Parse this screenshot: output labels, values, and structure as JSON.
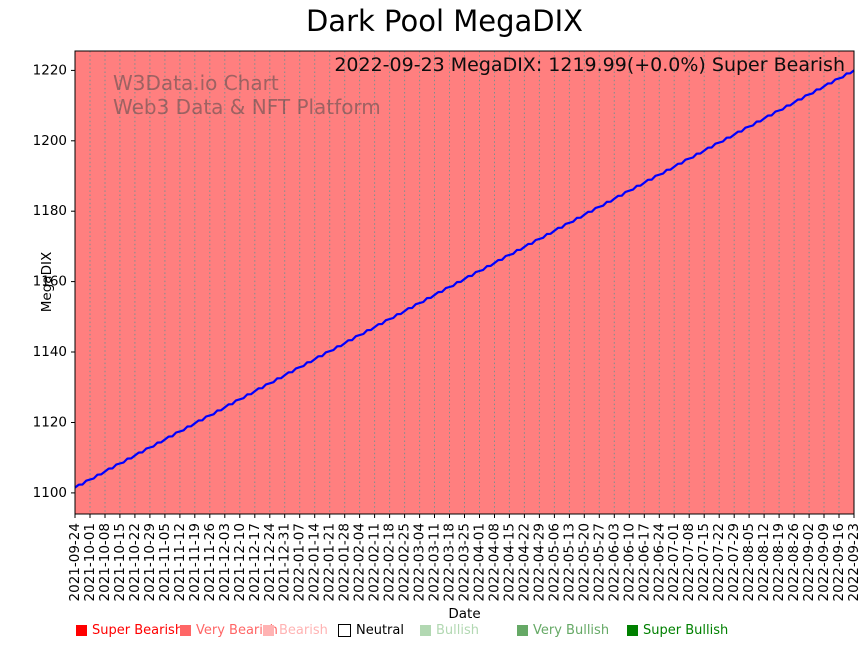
{
  "title": "Dark Pool MegaDIX",
  "annotation": {
    "text": "2022-09-23 MegaDIX: 1219.99(+0.0%) Super Bearish"
  },
  "watermark": {
    "line1": "W3Data.io Chart",
    "line2": "Web3 Data & NFT Platform"
  },
  "chart_data": {
    "type": "line",
    "title": "Dark Pool MegaDIX",
    "xlabel": "Date",
    "ylabel": "MegaDIX",
    "x": [
      "2021-09-24",
      "2021-10-01",
      "2021-10-08",
      "2021-10-15",
      "2021-10-22",
      "2021-10-29",
      "2021-11-05",
      "2021-11-12",
      "2021-11-19",
      "2021-11-26",
      "2021-12-03",
      "2021-12-10",
      "2021-12-17",
      "2021-12-24",
      "2021-12-31",
      "2022-01-07",
      "2022-01-14",
      "2022-01-21",
      "2022-01-28",
      "2022-02-04",
      "2022-02-11",
      "2022-02-18",
      "2022-02-25",
      "2022-03-04",
      "2022-03-11",
      "2022-03-18",
      "2022-03-25",
      "2022-04-01",
      "2022-04-08",
      "2022-04-15",
      "2022-04-22",
      "2022-04-29",
      "2022-05-06",
      "2022-05-13",
      "2022-05-20",
      "2022-05-27",
      "2022-06-03",
      "2022-06-10",
      "2022-06-17",
      "2022-06-24",
      "2022-07-01",
      "2022-07-08",
      "2022-07-15",
      "2022-07-22",
      "2022-07-29",
      "2022-08-05",
      "2022-08-12",
      "2022-08-19",
      "2022-08-26",
      "2022-09-02",
      "2022-09-09",
      "2022-09-16",
      "2022-09-23"
    ],
    "series": [
      {
        "name": "MegaDIX",
        "color": "#0000ff",
        "values": [
          1101.5,
          1103.78,
          1106.06,
          1108.34,
          1110.61,
          1112.89,
          1115.17,
          1117.45,
          1119.73,
          1122.01,
          1124.29,
          1126.57,
          1128.84,
          1131.12,
          1133.4,
          1135.68,
          1137.96,
          1140.24,
          1142.52,
          1144.8,
          1147.07,
          1149.35,
          1151.63,
          1153.91,
          1156.19,
          1158.47,
          1160.75,
          1163.03,
          1165.3,
          1167.58,
          1169.86,
          1172.14,
          1174.42,
          1176.7,
          1178.98,
          1181.26,
          1183.53,
          1185.81,
          1188.09,
          1190.37,
          1192.65,
          1194.93,
          1197.21,
          1199.49,
          1201.76,
          1204.04,
          1206.32,
          1208.6,
          1210.88,
          1213.16,
          1215.44,
          1217.71,
          1219.99
        ]
      }
    ],
    "ylim": [
      1094,
      1225.5
    ],
    "yticks": [
      1100,
      1120,
      1140,
      1160,
      1180,
      1200,
      1220
    ],
    "grid": "vertical-dotted",
    "legend_position": "bottom",
    "plot_bg_color": "#ff7f7f",
    "grid_color": "#7d8f8f",
    "last_point": {
      "date": "2022-09-23",
      "value": 1219.99,
      "change_pct": "+0.0%",
      "sentiment": "Super Bearish"
    }
  },
  "legend": {
    "items": [
      {
        "label": "Super Bearish",
        "color": "#ff0000"
      },
      {
        "label": "Very Bearish",
        "color": "#ff6666"
      },
      {
        "label": "Bearish",
        "color": "#ffb3b3"
      },
      {
        "label": "Neutral",
        "color": "#ffffff",
        "border": "#000000",
        "text_color": "#000000"
      },
      {
        "label": "Bullish",
        "color": "#b2d8b2"
      },
      {
        "label": "Very Bullish",
        "color": "#66a966"
      },
      {
        "label": "Super Bullish",
        "color": "#008000"
      }
    ]
  }
}
